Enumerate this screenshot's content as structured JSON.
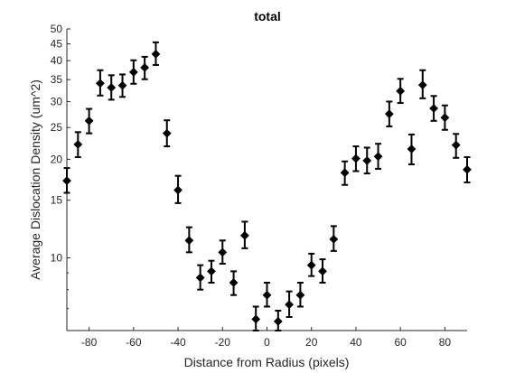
{
  "chart_data": {
    "type": "scatter",
    "title": "total",
    "xlabel": "Distance from Radius (pixels)",
    "ylabel": "Average Dislocation Density (um^2)",
    "xlim": [
      -90,
      90
    ],
    "ylim": [
      6,
      50
    ],
    "y_scale": "log",
    "grid": false,
    "legend": "none",
    "x_ticks": [
      -80,
      -60,
      -40,
      -20,
      0,
      20,
      40,
      60,
      80
    ],
    "y_ticks": [
      10,
      15,
      20,
      25,
      30,
      35,
      40,
      45,
      50
    ],
    "marker": "diamond",
    "color": "#000000",
    "series": [
      {
        "x": [
          -90,
          -85,
          -80,
          -75,
          -70,
          -65,
          -60,
          -55,
          -50,
          -45,
          -40,
          -35,
          -30,
          -25,
          -20,
          -15,
          -10,
          -5,
          0,
          5,
          10,
          15,
          20,
          25,
          30,
          35,
          40,
          45,
          50,
          55,
          60,
          65,
          70,
          75,
          80,
          85,
          90
        ],
        "y": [
          17.2,
          22.2,
          26.2,
          34.1,
          33.1,
          33.6,
          36.9,
          38.1,
          41.9,
          24.0,
          16.1,
          11.3,
          8.7,
          9.1,
          10.4,
          8.4,
          11.7,
          6.5,
          7.7,
          6.4,
          7.2,
          7.7,
          9.5,
          9.1,
          11.4,
          18.2,
          20.1,
          19.8,
          20.4,
          27.5,
          32.3,
          21.5,
          33.7,
          28.6,
          26.8,
          22.1,
          18.6
        ],
        "y_lower": [
          15.8,
          20.3,
          24.0,
          31.3,
          30.4,
          31.0,
          34.0,
          35.1,
          38.8,
          21.9,
          14.7,
          10.4,
          8.0,
          8.4,
          9.6,
          7.7,
          10.7,
          6.0,
          7.1,
          6.0,
          6.6,
          7.1,
          8.8,
          8.4,
          10.5,
          16.7,
          18.4,
          18.1,
          18.7,
          25.2,
          29.7,
          19.3,
          30.7,
          26.2,
          24.6,
          20.2,
          17.0
        ],
        "y_upper": [
          18.8,
          24.2,
          28.5,
          37.4,
          36.1,
          36.3,
          40.1,
          41.1,
          45.5,
          26.3,
          17.8,
          12.4,
          9.5,
          9.8,
          11.3,
          9.1,
          12.9,
          7.1,
          8.4,
          6.9,
          7.9,
          8.4,
          10.3,
          9.9,
          12.5,
          19.7,
          21.9,
          21.7,
          22.3,
          30.0,
          35.2,
          23.8,
          37.4,
          31.2,
          29.2,
          23.9,
          20.3
        ]
      }
    ]
  }
}
